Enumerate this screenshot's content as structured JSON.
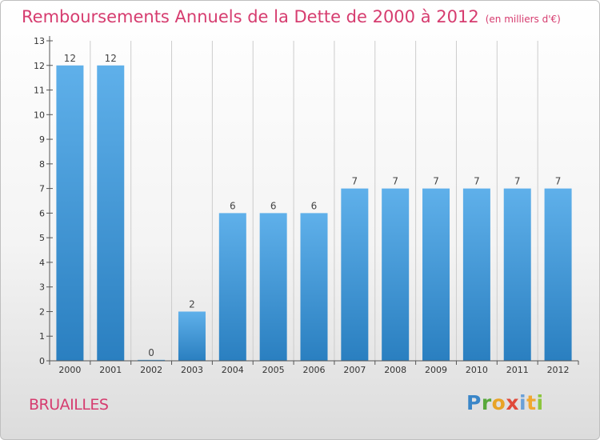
{
  "title": "Remboursements Annuels de la Dette de 2000 à 2012",
  "unit": "(en milliers d'€)",
  "town": "BRUAILLES",
  "logo": {
    "p": "P",
    "r": "r",
    "o": "o",
    "x": "x",
    "i1": "i",
    "t": "t",
    "i2": "i"
  },
  "colors": {
    "title": "#d63c6f",
    "bar_top": "#5fb0ea",
    "bar_bottom": "#2a7fc0",
    "axis": "#555555",
    "grid": "#cccccc"
  },
  "chart_data": {
    "type": "bar",
    "title": "Remboursements Annuels de la Dette de 2000 à 2012",
    "xlabel": "",
    "ylabel": "",
    "categories": [
      "2000",
      "2001",
      "2002",
      "2003",
      "2004",
      "2005",
      "2006",
      "2007",
      "2008",
      "2009",
      "2010",
      "2011",
      "2012"
    ],
    "values": [
      12,
      12,
      0,
      2,
      6,
      6,
      6,
      7,
      7,
      7,
      7,
      7,
      7
    ],
    "value_labels": [
      "12",
      "12",
      "0",
      "2",
      "6",
      "6",
      "6",
      "7",
      "7",
      "7",
      "7",
      "7",
      "7"
    ],
    "ylim": [
      0,
      13
    ],
    "yticks": [
      "0",
      "1",
      "2",
      "3",
      "4",
      "5",
      "6",
      "7",
      "8",
      "9",
      "10",
      "11",
      "12",
      "13"
    ],
    "grid": "vertical",
    "legend": "none"
  }
}
